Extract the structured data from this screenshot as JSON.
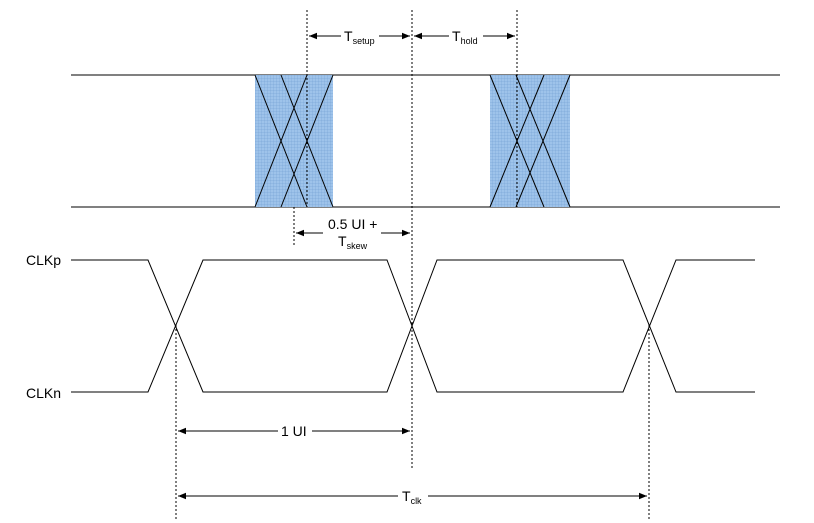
{
  "labels": {
    "setup_main": "T",
    "setup_sub": "setup",
    "hold_main": "T",
    "hold_sub": "hold",
    "half_ui_line1": "0.5 UI +",
    "skew_main": "T",
    "skew_sub": "skew",
    "clkp": "CLKp",
    "clkn": "CLKn",
    "one_ui": "1 UI",
    "tclk_main": "T",
    "tclk_sub": "clk"
  },
  "colors": {
    "window_fill": "#9ec3ea",
    "window_grid": "#5f8fc6",
    "line": "#000000"
  }
}
